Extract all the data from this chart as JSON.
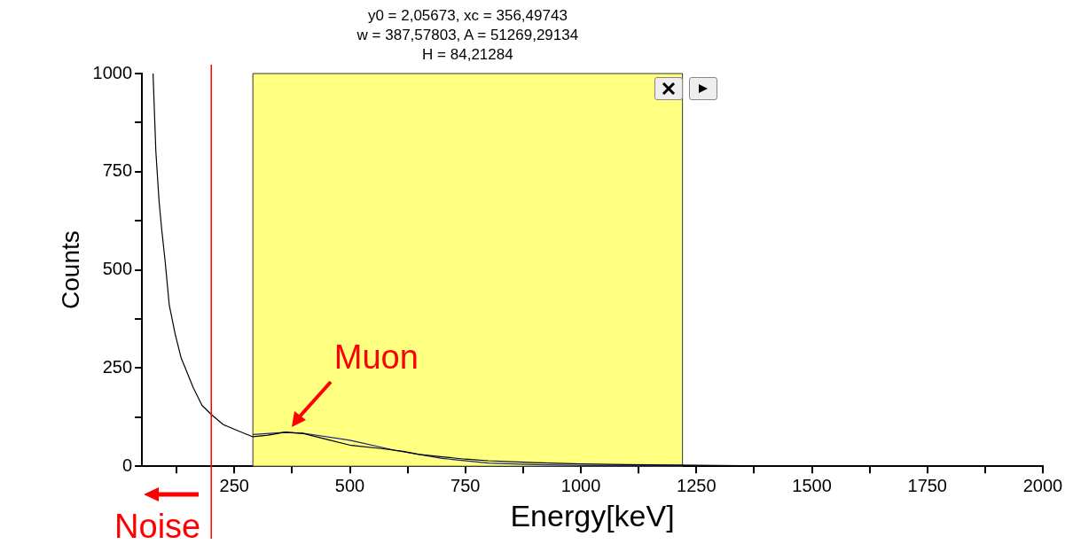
{
  "chart_data": {
    "type": "line",
    "xlabel": "Energy[keV]",
    "ylabel": "Counts",
    "annotations": [
      "y0 = 2,05673, xc = 356,49743",
      "w = 387,57803, A = 51269,29134",
      "H = 84,21284",
      {
        "text": "Muon",
        "x": 370,
        "y": 90
      }
    ],
    "series": [
      {
        "color": "#000000",
        "x": [
          74,
          80,
          87,
          93,
          100,
          109,
          122,
          135,
          148,
          161,
          180,
          200,
          226,
          258,
          290,
          323,
          361,
          400,
          452,
          503,
          568,
          615,
          650,
          700,
          750,
          800,
          900,
          1000,
          1100,
          1200,
          1300,
          1400,
          1500,
          1600,
          1700,
          1800,
          1900,
          2000
        ],
        "values": [
          1000,
          803,
          675,
          600,
          524,
          411,
          336,
          275,
          238,
          200,
          155,
          132,
          106,
          90,
          75,
          79,
          87,
          83,
          68,
          53,
          45,
          38,
          30,
          24,
          18,
          14,
          9,
          6,
          4,
          3,
          2,
          1,
          1,
          1,
          0,
          0,
          0,
          0
        ]
      },
      {
        "color": "#1a237e",
        "x": [
          290,
          356,
          400,
          500,
          600,
          700,
          800,
          900,
          1000,
          1100,
          1220
        ],
        "values": [
          81,
          86,
          84,
          66,
          40,
          20,
          8,
          4,
          2,
          2,
          2
        ]
      }
    ],
    "xlim": [
      50,
      2000
    ],
    "ylim": [
      0,
      1000
    ],
    "xticks": [
      {
        "value": 125,
        "label": null
      },
      250,
      {
        "value": 375,
        "label": null
      },
      500,
      {
        "value": 625,
        "label": null
      },
      750,
      {
        "value": 875,
        "label": null
      },
      1000,
      {
        "value": 1125,
        "label": null
      },
      1250,
      {
        "value": 1375,
        "label": null
      },
      1500,
      {
        "value": 1625,
        "label": null
      },
      1750,
      {
        "value": 1875,
        "label": null
      },
      2000
    ],
    "yticks": [
      0,
      {
        "value": 125,
        "label": null
      },
      250,
      {
        "value": 375,
        "label": null
      },
      500,
      {
        "value": 625,
        "label": null
      },
      750,
      {
        "value": 875,
        "label": null
      },
      1000
    ],
    "bands": [
      {
        "axis": "x",
        "from": 290,
        "to": 1220,
        "color": "#ffff80"
      }
    ],
    "ref_lines": [
      {
        "axis": "x",
        "value": 200,
        "label": "Noise",
        "color": "#ff0000"
      }
    ],
    "grid": false,
    "legend": false,
    "marker": "none",
    "line_style": "solid"
  }
}
